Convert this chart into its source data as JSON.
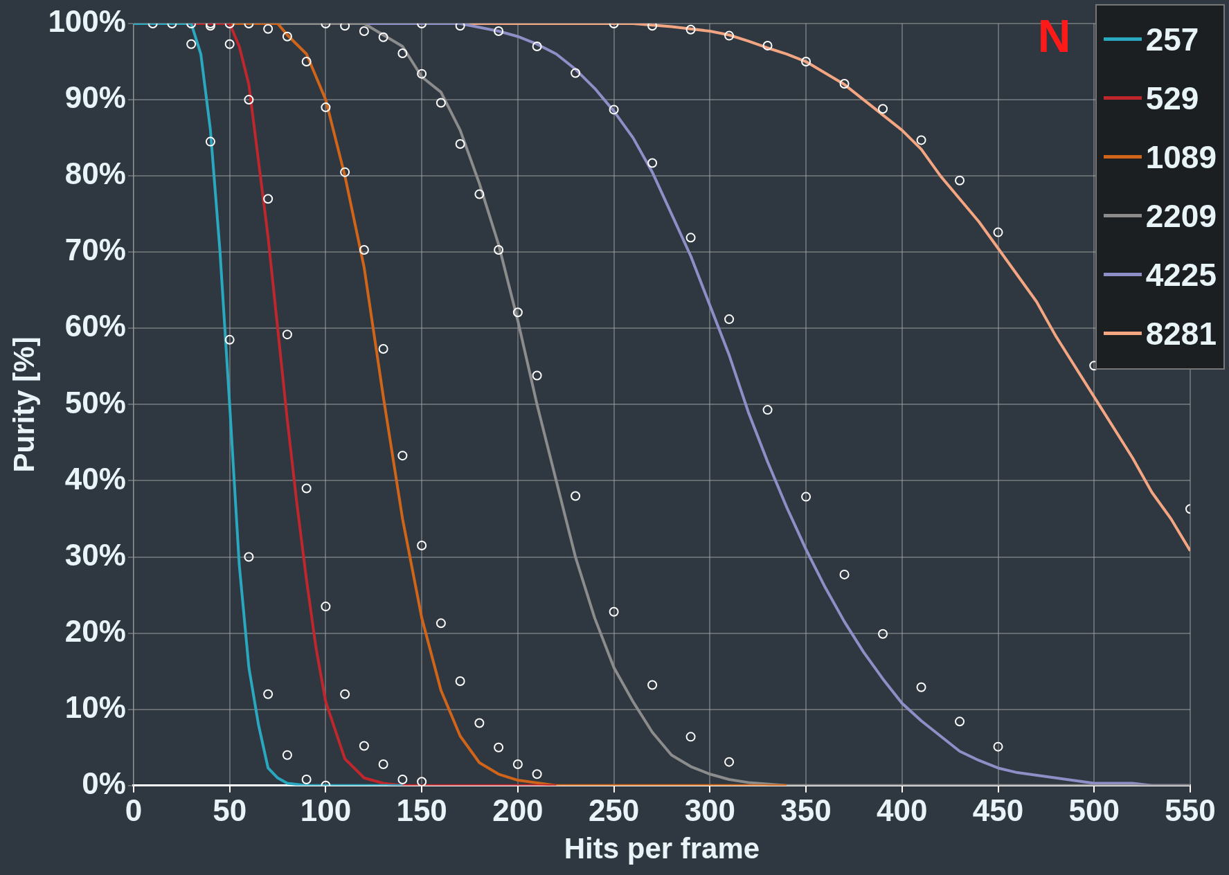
{
  "chart_data": {
    "type": "line",
    "xlabel": "Hits per frame",
    "ylabel": "Purity [%]",
    "legend_title": "N",
    "legend": "top right",
    "grid": true,
    "xlim": [
      0,
      550
    ],
    "xticks": [
      0,
      50,
      100,
      150,
      200,
      250,
      300,
      350,
      400,
      450,
      500,
      550
    ],
    "ylim": [
      0,
      100
    ],
    "yticks": [
      {
        "value": 0,
        "label": "0%"
      },
      {
        "value": 10,
        "label": "10%"
      },
      {
        "value": 20,
        "label": "20%"
      },
      {
        "value": 30,
        "label": "30%"
      },
      {
        "value": 40,
        "label": "40%"
      },
      {
        "value": 50,
        "label": "50%"
      },
      {
        "value": 60,
        "label": "60%"
      },
      {
        "value": 70,
        "label": "70%"
      },
      {
        "value": 80,
        "label": "80%"
      },
      {
        "value": 90,
        "label": "90%"
      },
      {
        "value": 100,
        "label": "100%"
      }
    ],
    "series": [
      {
        "name": "257",
        "color": "#2aa8c0",
        "x": [
          0,
          30,
          35,
          40,
          45,
          50,
          55,
          60,
          65,
          70,
          75,
          80,
          90,
          140
        ],
        "values": [
          100,
          100,
          96,
          86,
          70,
          50,
          29,
          15.5,
          8,
          2.3,
          1,
          0.3,
          0,
          0
        ]
      },
      {
        "name": "529",
        "color": "#c0272d",
        "x": [
          0,
          50,
          55,
          60,
          65,
          70,
          75,
          80,
          85,
          90,
          95,
          100,
          110,
          120,
          130,
          140,
          220
        ],
        "values": [
          100,
          100,
          97,
          92,
          82,
          72,
          60,
          48,
          37,
          27,
          18,
          11,
          3.5,
          1,
          0.3,
          0,
          0
        ]
      },
      {
        "name": "1089",
        "color": "#d0651a",
        "x": [
          0,
          75,
          80,
          90,
          100,
          110,
          120,
          130,
          140,
          150,
          160,
          170,
          180,
          190,
          200,
          220,
          340
        ],
        "values": [
          100,
          100,
          98.5,
          96,
          90,
          80,
          68,
          51,
          35,
          22,
          12.5,
          6.5,
          3,
          1.5,
          0.7,
          0,
          0
        ]
      },
      {
        "name": "2209",
        "color": "#8c8c8c",
        "x": [
          0,
          120,
          130,
          140,
          150,
          160,
          170,
          180,
          190,
          200,
          210,
          220,
          230,
          240,
          250,
          260,
          270,
          280,
          290,
          300,
          310,
          320,
          340,
          550
        ],
        "values": [
          100,
          100,
          98.5,
          97,
          93,
          91,
          86,
          79,
          71,
          61,
          50,
          40,
          30,
          22,
          15.5,
          11,
          7,
          4,
          2.5,
          1.5,
          0.8,
          0.4,
          0,
          0
        ]
      },
      {
        "name": "4225",
        "color": "#8f8fc8",
        "x": [
          0,
          170,
          180,
          190,
          200,
          210,
          220,
          230,
          240,
          250,
          260,
          270,
          280,
          290,
          300,
          310,
          320,
          330,
          340,
          350,
          360,
          370,
          380,
          390,
          400,
          410,
          420,
          430,
          440,
          450,
          460,
          480,
          500,
          520,
          530,
          550
        ],
        "values": [
          100,
          100,
          99.5,
          99,
          98.3,
          97.3,
          96,
          94,
          91.5,
          88.5,
          85,
          80.5,
          75,
          69.5,
          63,
          56.5,
          49,
          42.5,
          36.5,
          31,
          26,
          21.5,
          17.5,
          14,
          10.8,
          8.5,
          6.5,
          4.5,
          3.3,
          2.3,
          1.7,
          1,
          0.3,
          0.3,
          0,
          0
        ]
      },
      {
        "name": "8281",
        "color": "#f4a582",
        "x": [
          0,
          260,
          270,
          280,
          290,
          300,
          310,
          320,
          330,
          340,
          350,
          360,
          370,
          380,
          390,
          400,
          410,
          420,
          430,
          440,
          450,
          460,
          470,
          480,
          490,
          500,
          510,
          520,
          530,
          540,
          550
        ],
        "values": [
          100,
          100,
          99.8,
          99.6,
          99.3,
          99,
          98.5,
          97.7,
          96.8,
          96,
          95,
          93.5,
          92,
          90,
          88,
          86,
          83.5,
          80,
          77,
          74,
          70.5,
          67,
          63.5,
          59,
          55,
          51,
          47,
          43,
          38.5,
          35,
          30.8
        ]
      },
      {
        "type": "scatter",
        "color": "#ffffff",
        "marker": "circle",
        "x": [
          10,
          20,
          30,
          30,
          40,
          40,
          40,
          50,
          50,
          50,
          60,
          60,
          60,
          70,
          70,
          70,
          80,
          80,
          80,
          90,
          90,
          90,
          100,
          100,
          100,
          100,
          110,
          110,
          110,
          120,
          120,
          120,
          130,
          130,
          130,
          140,
          140,
          140,
          150,
          150,
          150,
          150,
          160,
          160,
          170,
          170,
          170,
          180,
          180,
          190,
          190,
          190,
          200,
          200,
          210,
          210,
          210,
          230,
          230,
          250,
          250,
          250,
          270,
          270,
          270,
          290,
          290,
          290,
          310,
          310,
          310,
          330,
          330,
          350,
          350,
          370,
          370,
          390,
          390,
          410,
          410,
          430,
          430,
          450,
          450,
          500,
          550
        ],
        "values": [
          100,
          100,
          100,
          97.3,
          100,
          99.7,
          84.5,
          100,
          97.3,
          58.5,
          100,
          90,
          30,
          99.3,
          77,
          12,
          98.3,
          59.2,
          4,
          95,
          39,
          0.8,
          100,
          89,
          23.5,
          0,
          99.7,
          80.5,
          12,
          99,
          70.3,
          5.2,
          98.2,
          57.3,
          2.8,
          96.1,
          43.3,
          0.8,
          100,
          93.4,
          31.5,
          0.5,
          89.6,
          21.3,
          99.7,
          84.2,
          13.7,
          77.6,
          8.2,
          99,
          70.3,
          5,
          62.1,
          2.8,
          97,
          53.8,
          1.5,
          93.5,
          38,
          100,
          88.7,
          22.8,
          99.7,
          81.7,
          13.2,
          99.2,
          71.9,
          6.4,
          98.4,
          61.2,
          3.1,
          97.1,
          49.3,
          95,
          37.9,
          92.1,
          27.7,
          88.8,
          19.9,
          84.7,
          12.9,
          79.4,
          8.4,
          72.6,
          5.1,
          55.1,
          36.3
        ]
      }
    ]
  }
}
